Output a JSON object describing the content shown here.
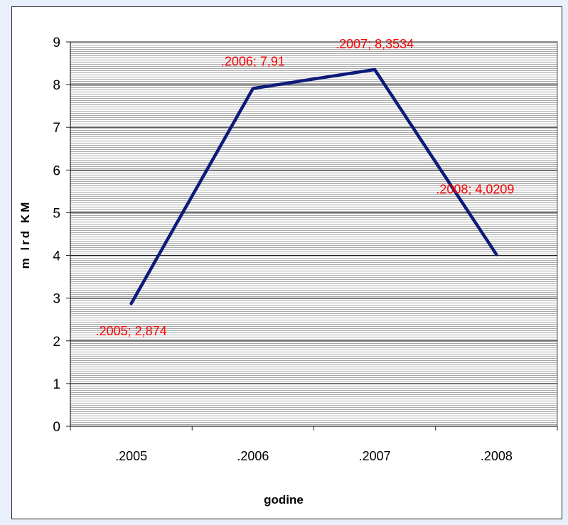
{
  "chart_data": {
    "type": "line",
    "categories": [
      ".2005",
      ".2006",
      ".2007",
      ".2008"
    ],
    "series": [
      {
        "values": [
          2.874,
          7.91,
          8.3534,
          4.0209
        ]
      }
    ],
    "data_labels": [
      ".2005; 2,874",
      ".2006; 7,91",
      ".2007; 8,3534",
      ".2008; 4,0209"
    ],
    "xlabel": "godine",
    "ylabel": "m lrd  KM",
    "ylim": [
      0,
      9
    ],
    "yticks": [
      "0",
      "1",
      "2",
      "3",
      "4",
      "5",
      "6",
      "7",
      "8",
      "9"
    ],
    "grid": true,
    "plot_background": "hatched gray",
    "line_color": "#0d1a7a",
    "label_color": "#ff0000"
  }
}
